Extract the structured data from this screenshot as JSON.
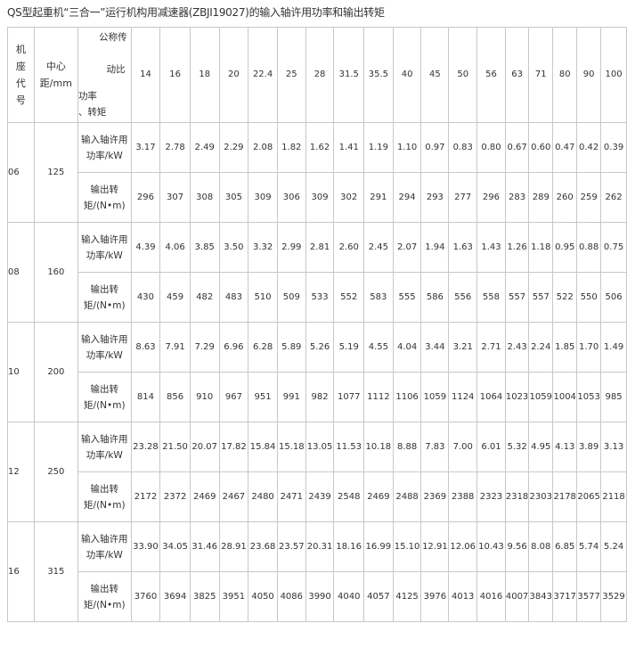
{
  "title": "QS型起重机“三合一”运行机构用减速器(ZBJI19027)的输入轴许用功率和输出转矩",
  "header": {
    "seat_code": "机座代号",
    "center_distance": "中心距/mm",
    "corner_top": "公称传",
    "corner_mid": "动比",
    "corner_bottom_1": "功率",
    "corner_bottom_2": "、转矩",
    "ratios": [
      "14",
      "16",
      "18",
      "20",
      "22.4",
      "25",
      "28",
      "31.5",
      "35.5",
      "40",
      "45",
      "50",
      "56",
      "63",
      "71",
      "80",
      "90",
      "100"
    ]
  },
  "row_labels": {
    "power": "输入轴许用功率/kW",
    "torque": "输出转矩/(N•m)"
  },
  "groups": [
    {
      "code": "06",
      "distance": "125",
      "power": [
        "3.17",
        "2.78",
        "2.49",
        "2.29",
        "2.08",
        "1.82",
        "1.62",
        "1.41",
        "1.19",
        "1.10",
        "0.97",
        "0.83",
        "0.80",
        "0.67",
        "0.60",
        "0.47",
        "0.42",
        "0.39"
      ],
      "torque": [
        "296",
        "307",
        "308",
        "305",
        "309",
        "306",
        "309",
        "302",
        "291",
        "294",
        "293",
        "277",
        "296",
        "283",
        "289",
        "260",
        "259",
        "262"
      ]
    },
    {
      "code": "08",
      "distance": "160",
      "power": [
        "4.39",
        "4.06",
        "3.85",
        "3.50",
        "3.32",
        "2.99",
        "2.81",
        "2.60",
        "2.45",
        "2.07",
        "1.94",
        "1.63",
        "1.43",
        "1.26",
        "1.18",
        "0.95",
        "0.88",
        "0.75"
      ],
      "torque": [
        "430",
        "459",
        "482",
        "483",
        "510",
        "509",
        "533",
        "552",
        "583",
        "555",
        "586",
        "556",
        "558",
        "557",
        "557",
        "522",
        "550",
        "506"
      ]
    },
    {
      "code": "10",
      "distance": "200",
      "power": [
        "8.63",
        "7.91",
        "7.29",
        "6.96",
        "6.28",
        "5.89",
        "5.26",
        "5.19",
        "4.55",
        "4.04",
        "3.44",
        "3.21",
        "2.71",
        "2.43",
        "2.24",
        "1.85",
        "1.70",
        "1.49"
      ],
      "torque": [
        "814",
        "856",
        "910",
        "967",
        "951",
        "991",
        "982",
        "1077",
        "1112",
        "1106",
        "1059",
        "1124",
        "1064",
        "1023",
        "1059",
        "1004",
        "1053",
        "985"
      ]
    },
    {
      "code": "12",
      "distance": "250",
      "power": [
        "23.28",
        "21.50",
        "20.07",
        "17.82",
        "15.84",
        "15.18",
        "13.05",
        "11.53",
        "10.18",
        "8.88",
        "7.83",
        "7.00",
        "6.01",
        "5.32",
        "4.95",
        "4.13",
        "3.89",
        "3.13"
      ],
      "torque": [
        "2172",
        "2372",
        "2469",
        "2467",
        "2480",
        "2471",
        "2439",
        "2548",
        "2469",
        "2488",
        "2369",
        "2388",
        "2323",
        "2318",
        "2303",
        "2178",
        "2065",
        "2118"
      ]
    },
    {
      "code": "16",
      "distance": "315",
      "power": [
        "33.90",
        "34.05",
        "31.46",
        "28.91",
        "23.68",
        "23.57",
        "20.31",
        "18.16",
        "16.99",
        "15.10",
        "12.91",
        "12.06",
        "10.43",
        "9.56",
        "8.08",
        "6.85",
        "5.74",
        "5.24"
      ],
      "torque": [
        "3760",
        "3694",
        "3825",
        "3951",
        "4050",
        "4086",
        "3990",
        "4040",
        "4057",
        "4125",
        "3976",
        "4013",
        "4016",
        "4007",
        "3843",
        "3717",
        "3577",
        "3529"
      ]
    }
  ]
}
